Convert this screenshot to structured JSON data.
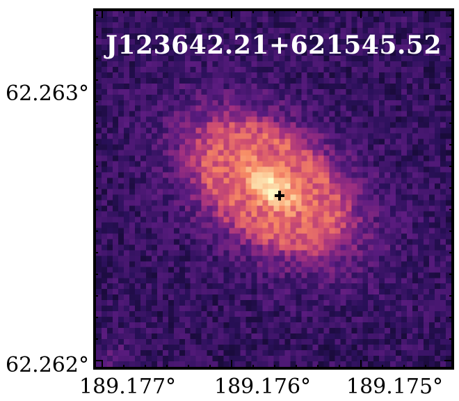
{
  "image": {
    "object_name": "J123642.21+621545.52",
    "colormap": "magma",
    "marker": "crosshair"
  },
  "axes": {
    "y_ticks": [
      "62.263°",
      "62.262°"
    ],
    "x_ticks": [
      "189.177°",
      "189.176°",
      "189.175°"
    ]
  }
}
